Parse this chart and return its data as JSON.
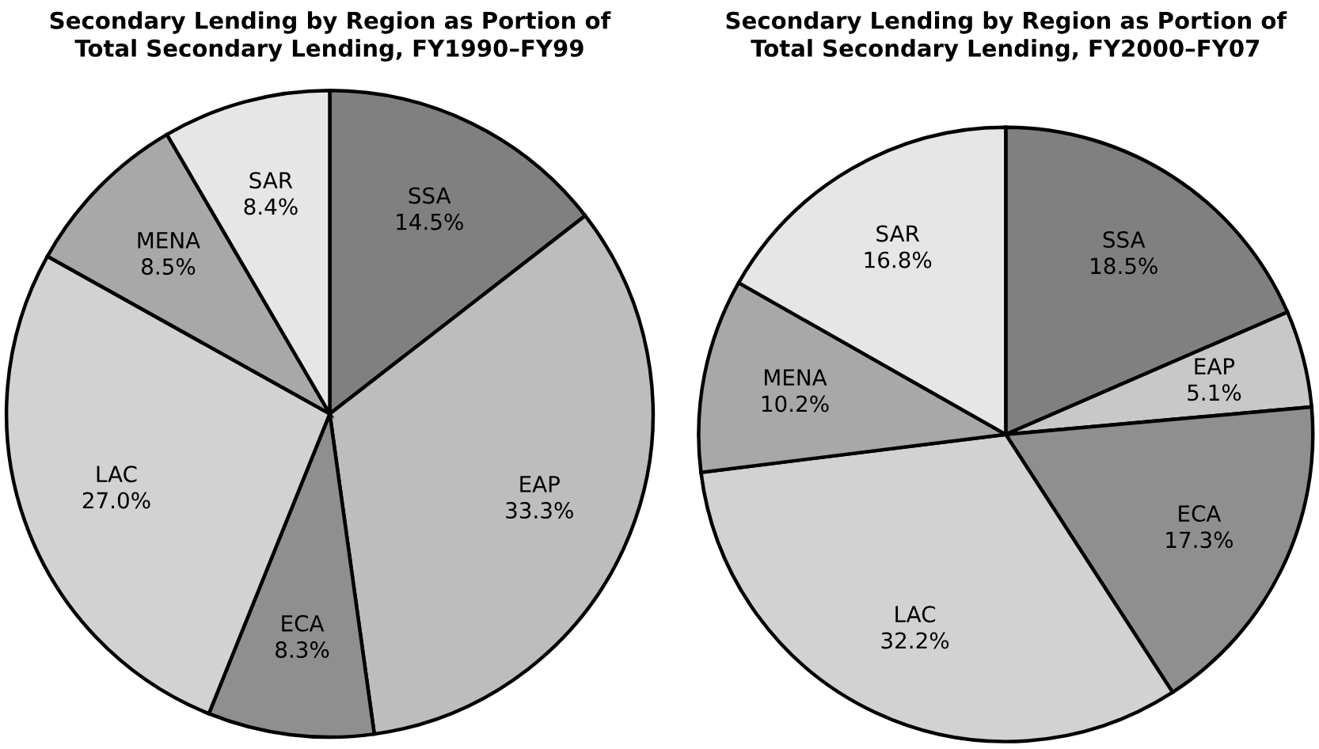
{
  "chart_data": [
    {
      "type": "pie",
      "title": "Secondary Lending by Region as Portion of\nTotal Secondary Lending, FY1990–FY99",
      "categories": [
        "SSA",
        "EAP",
        "ECA",
        "LAC",
        "MENA",
        "SAR"
      ],
      "values": [
        14.5,
        33.3,
        8.3,
        27.0,
        8.5,
        8.4
      ],
      "value_labels": [
        "14.5%",
        "33.3%",
        "8.3%",
        "27.0%",
        "8.5%",
        "8.4%"
      ],
      "colors": [
        "#808080",
        "#bdbdbd",
        "#8f8f8f",
        "#d2d2d2",
        "#a8a8a8",
        "#e6e6e6"
      ]
    },
    {
      "type": "pie",
      "title": "Secondary Lending by Region as Portion of\nTotal Secondary Lending, FY2000–FY07",
      "categories": [
        "SSA",
        "EAP",
        "ECA",
        "LAC",
        "MENA",
        "SAR"
      ],
      "values": [
        18.5,
        5.1,
        17.3,
        32.2,
        10.2,
        16.8
      ],
      "value_labels": [
        "18.5%",
        "5.1%",
        "17.3%",
        "32.2%",
        "10.2%",
        "16.8%"
      ],
      "colors": [
        "#808080",
        "#c8c8c8",
        "#8f8f8f",
        "#d2d2d2",
        "#a8a8a8",
        "#e6e6e6"
      ]
    }
  ]
}
